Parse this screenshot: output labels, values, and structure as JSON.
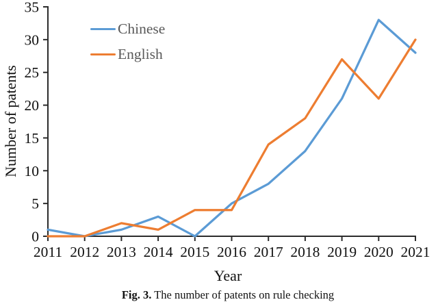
{
  "figure": {
    "caption_label": "Fig. 3.",
    "caption_text": " The number of patents on rule checking"
  },
  "chart_data": {
    "type": "line",
    "title": "",
    "xlabel": "Year",
    "ylabel": "Number of patents",
    "categories": [
      "2011",
      "2012",
      "2013",
      "2014",
      "2015",
      "2016",
      "2017",
      "2018",
      "2019",
      "2020",
      "2021"
    ],
    "series": [
      {
        "name": "Chinese",
        "color": "#5B9BD5",
        "values": [
          1,
          0,
          1,
          3,
          0,
          5,
          8,
          13,
          21,
          33,
          28
        ]
      },
      {
        "name": "English",
        "color": "#ED7D31",
        "values": [
          0,
          0,
          2,
          1,
          4,
          4,
          14,
          18,
          27,
          21,
          30
        ]
      }
    ],
    "ylim": [
      0,
      35
    ],
    "y_ticks": [
      0,
      5,
      10,
      15,
      20,
      25,
      30,
      35
    ],
    "grid": false,
    "legend_position": "inside-top-left",
    "axis_color": "#2b2b2b",
    "tick_label_color": "#111111",
    "legend_text_color": "#595959"
  }
}
